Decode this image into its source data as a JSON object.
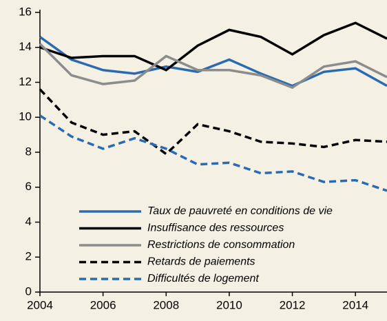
{
  "chart_data": {
    "type": "line",
    "x": [
      2004,
      2005,
      2006,
      2007,
      2008,
      2009,
      2010,
      2011,
      2012,
      2013,
      2014,
      2015
    ],
    "series": [
      {
        "name": "Taux de pauvreté en conditions de vie",
        "color": "#2a6ab3",
        "linestyle": "solid",
        "values": [
          14.6,
          13.3,
          12.7,
          12.5,
          12.9,
          12.6,
          13.3,
          12.5,
          11.8,
          12.6,
          12.8,
          11.8
        ]
      },
      {
        "name": "Insuffisance des ressources",
        "color": "#000000",
        "linestyle": "solid",
        "values": [
          14.0,
          13.4,
          13.5,
          13.5,
          12.7,
          14.1,
          15.0,
          14.6,
          13.6,
          14.7,
          15.4,
          14.5
        ]
      },
      {
        "name": "Restrictions de consommation",
        "color": "#8c8c8c",
        "linestyle": "solid",
        "values": [
          14.2,
          12.4,
          11.9,
          12.1,
          13.5,
          12.7,
          12.7,
          12.4,
          11.7,
          12.9,
          13.2,
          12.3
        ]
      },
      {
        "name": "Retards de paiements",
        "color": "#000000",
        "linestyle": "dashed",
        "values": [
          11.6,
          9.7,
          9.0,
          9.2,
          7.9,
          9.6,
          9.2,
          8.6,
          8.5,
          8.3,
          8.7,
          8.6
        ]
      },
      {
        "name": "Difficultés de logement",
        "color": "#2a6ab3",
        "linestyle": "dashed",
        "values": [
          10.1,
          8.9,
          8.2,
          8.8,
          8.2,
          7.3,
          7.4,
          6.8,
          6.9,
          6.3,
          6.4,
          5.8
        ]
      }
    ],
    "xlim": [
      2004,
      2015
    ],
    "xticks": [
      2004,
      2006,
      2008,
      2010,
      2012,
      2014
    ],
    "ylim": [
      0,
      16
    ],
    "yticks": [
      0,
      2,
      4,
      6,
      8,
      10,
      12,
      14,
      16
    ],
    "grid": false,
    "legend": "lower right"
  }
}
